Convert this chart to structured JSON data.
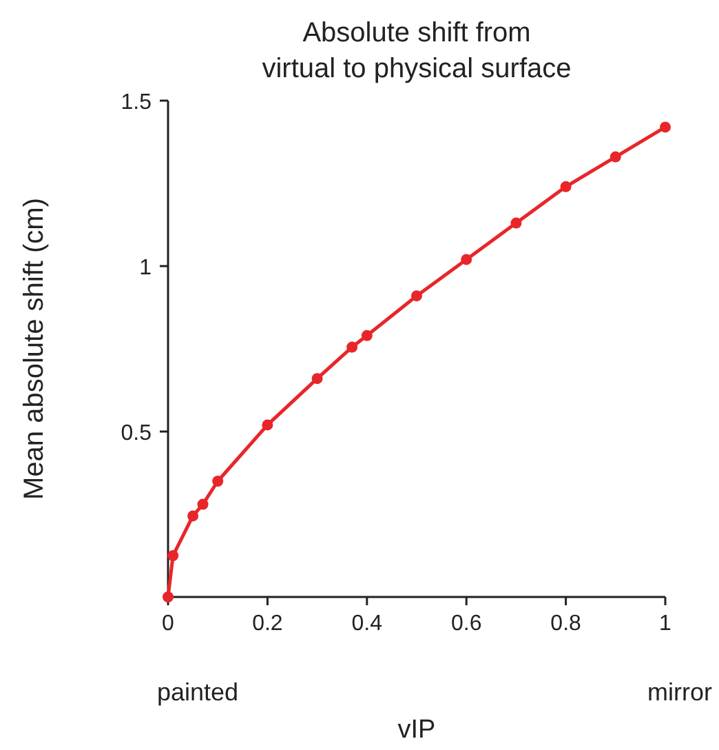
{
  "chart_data": {
    "type": "line",
    "title": "Absolute shift from\nvirtual to physical surface",
    "xlabel": "vIP",
    "ylabel": "Mean absolute shift (cm)",
    "x": [
      0,
      0.01,
      0.05,
      0.07,
      0.1,
      0.2,
      0.3,
      0.37,
      0.4,
      0.5,
      0.6,
      0.7,
      0.8,
      0.9,
      1
    ],
    "series": [
      {
        "color": "#e8262a",
        "values": [
          0,
          0.125,
          0.245,
          0.28,
          0.35,
          0.52,
          0.66,
          0.755,
          0.79,
          0.91,
          1.02,
          1.13,
          1.24,
          1.33,
          1.42
        ]
      }
    ],
    "xlim": [
      0,
      1
    ],
    "xticks": [
      0,
      0.2,
      0.4,
      0.6,
      0.8,
      1
    ],
    "ylim": [
      0,
      1.5
    ],
    "yticks": [
      0.5,
      1,
      1.5
    ],
    "marker": "circle",
    "line_style": "solid",
    "annotations": [
      "painted",
      "mirror"
    ]
  }
}
